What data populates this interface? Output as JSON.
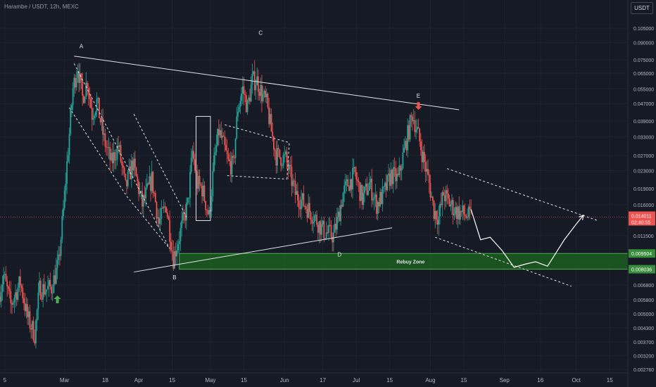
{
  "header": {
    "title": "Harambe / USDT, 12h, MEXC",
    "currency": "USDT"
  },
  "colors": {
    "background": "#161a25",
    "up": "#26a69a",
    "down": "#ef5350",
    "zone_fill": "#1b5e20",
    "zone_border": "#4caf50",
    "drawing": "#e0e3eb"
  },
  "chart_data": {
    "type": "candlestick",
    "scale": "log",
    "ylim": [
      0.00276,
      0.115
    ],
    "xlim": [
      "2024-02-03",
      "2024-10-22"
    ],
    "y_ticks": [
      "0.105000",
      "0.090000",
      "0.075000",
      "0.065000",
      "0.055000",
      "0.047000",
      "0.039000",
      "0.033000",
      "0.027000",
      "0.023000",
      "0.019000",
      "0.016000",
      "0.011500",
      "0.009500",
      "0.006800",
      "0.005800",
      "0.005000",
      "0.004300",
      "0.003700",
      "0.003200",
      "0.002760"
    ],
    "x_ticks": [
      {
        "label": "5",
        "date": "2024-02-05"
      },
      {
        "label": "Mar",
        "date": "2024-03-01"
      },
      {
        "label": "18",
        "date": "2024-03-18"
      },
      {
        "label": "Apr",
        "date": "2024-04-01"
      },
      {
        "label": "15",
        "date": "2024-04-15"
      },
      {
        "label": "May",
        "date": "2024-05-01"
      },
      {
        "label": "15",
        "date": "2024-05-15"
      },
      {
        "label": "Jun",
        "date": "2024-06-01"
      },
      {
        "label": "17",
        "date": "2024-06-17"
      },
      {
        "label": "Jul",
        "date": "2024-07-01"
      },
      {
        "label": "15",
        "date": "2024-07-15"
      },
      {
        "label": "Aug",
        "date": "2024-08-01"
      },
      {
        "label": "15",
        "date": "2024-08-15"
      },
      {
        "label": "Sep",
        "date": "2024-09-01"
      },
      {
        "label": "16",
        "date": "2024-09-16"
      },
      {
        "label": "Oct",
        "date": "2024-10-01"
      },
      {
        "label": "15",
        "date": "2024-10-15"
      }
    ],
    "price_path": [
      [
        "2024-02-03",
        0.006
      ],
      [
        "2024-02-05",
        0.0075
      ],
      [
        "2024-02-08",
        0.0055
      ],
      [
        "2024-02-12",
        0.007
      ],
      [
        "2024-02-15",
        0.0048
      ],
      [
        "2024-02-18",
        0.004
      ],
      [
        "2024-02-20",
        0.0065
      ],
      [
        "2024-02-23",
        0.0065
      ],
      [
        "2024-02-25",
        0.0066
      ],
      [
        "2024-02-28",
        0.0085
      ],
      [
        "2024-03-01",
        0.015
      ],
      [
        "2024-03-03",
        0.029
      ],
      [
        "2024-03-05",
        0.055
      ],
      [
        "2024-03-07",
        0.07
      ],
      [
        "2024-03-09",
        0.05
      ],
      [
        "2024-03-11",
        0.06
      ],
      [
        "2024-03-13",
        0.042
      ],
      [
        "2024-03-15",
        0.048
      ],
      [
        "2024-03-18",
        0.032
      ],
      [
        "2024-03-21",
        0.025
      ],
      [
        "2024-03-24",
        0.03
      ],
      [
        "2024-03-27",
        0.019
      ],
      [
        "2024-03-30",
        0.025
      ],
      [
        "2024-04-03",
        0.016
      ],
      [
        "2024-04-07",
        0.021
      ],
      [
        "2024-04-10",
        0.013
      ],
      [
        "2024-04-13",
        0.016
      ],
      [
        "2024-04-16",
        0.009
      ],
      [
        "2024-04-19",
        0.012
      ],
      [
        "2024-04-22",
        0.016
      ],
      [
        "2024-04-24",
        0.028
      ],
      [
        "2024-04-26",
        0.02
      ],
      [
        "2024-04-28",
        0.019
      ],
      [
        "2024-05-01",
        0.014
      ],
      [
        "2024-05-03",
        0.025
      ],
      [
        "2024-05-05",
        0.035
      ],
      [
        "2024-05-07",
        0.03
      ],
      [
        "2024-05-09",
        0.025
      ],
      [
        "2024-05-11",
        0.024
      ],
      [
        "2024-05-13",
        0.045
      ],
      [
        "2024-05-15",
        0.055
      ],
      [
        "2024-05-17",
        0.045
      ],
      [
        "2024-05-19",
        0.06
      ],
      [
        "2024-05-21",
        0.06
      ],
      [
        "2024-05-23",
        0.052
      ],
      [
        "2024-05-25",
        0.047
      ],
      [
        "2024-05-27",
        0.035
      ],
      [
        "2024-05-29",
        0.027
      ],
      [
        "2024-06-02",
        0.026
      ],
      [
        "2024-06-06",
        0.018
      ],
      [
        "2024-06-10",
        0.016
      ],
      [
        "2024-06-14",
        0.014
      ],
      [
        "2024-06-18",
        0.012
      ],
      [
        "2024-06-22",
        0.0115
      ],
      [
        "2024-06-24",
        0.014
      ],
      [
        "2024-06-26",
        0.018
      ],
      [
        "2024-06-28",
        0.02
      ],
      [
        "2024-07-01",
        0.022
      ],
      [
        "2024-07-04",
        0.017
      ],
      [
        "2024-07-07",
        0.02
      ],
      [
        "2024-07-10",
        0.016
      ],
      [
        "2024-07-13",
        0.018
      ],
      [
        "2024-07-16",
        0.022
      ],
      [
        "2024-07-19",
        0.021
      ],
      [
        "2024-07-22",
        0.03
      ],
      [
        "2024-07-25",
        0.042
      ],
      [
        "2024-07-27",
        0.035
      ],
      [
        "2024-07-30",
        0.025
      ],
      [
        "2024-08-01",
        0.02
      ],
      [
        "2024-08-03",
        0.015
      ],
      [
        "2024-08-05",
        0.014
      ],
      [
        "2024-08-07",
        0.018
      ],
      [
        "2024-08-09",
        0.0165
      ],
      [
        "2024-08-12",
        0.015
      ],
      [
        "2024-08-15",
        0.0145
      ],
      [
        "2024-08-18",
        0.01401
      ]
    ],
    "last_price": "0.014011",
    "countdown": "02:40:55",
    "zone": {
      "label": "Rebuy Zone",
      "upper": 0.009504,
      "lower": 0.008036,
      "upper_label": "0.009504",
      "lower_label": "0.008036",
      "start": "2024-04-18",
      "end": "2024-10-22"
    },
    "annotations": [
      {
        "label": "A",
        "date": "2024-03-08",
        "price": 0.085
      },
      {
        "label": "B",
        "date": "2024-04-16",
        "price": 0.0072
      },
      {
        "label": "C",
        "date": "2024-05-22",
        "price": 0.098
      },
      {
        "label": "D",
        "date": "2024-06-24",
        "price": 0.0092
      },
      {
        "label": "E",
        "date": "2024-07-27",
        "price": 0.05
      }
    ],
    "markers": [
      {
        "type": "up-arrow",
        "color": "#4caf50",
        "date": "2024-02-27",
        "price": 0.0058
      },
      {
        "type": "down-arrow",
        "color": "#ef5350",
        "date": "2024-07-27",
        "price": 0.046
      }
    ],
    "trendlines": [
      {
        "style": "solid",
        "points": [
          [
            "2024-03-05",
            0.078
          ],
          [
            "2024-08-13",
            0.044
          ]
        ]
      },
      {
        "style": "solid",
        "points": [
          [
            "2024-03-30",
            0.0078
          ],
          [
            "2024-07-16",
            0.0125
          ]
        ]
      },
      {
        "style": "dashed",
        "points": [
          [
            "2024-03-05",
            0.072
          ],
          [
            "2024-04-14",
            0.01
          ]
        ]
      },
      {
        "style": "dashed",
        "points": [
          [
            "2024-03-03",
            0.045
          ],
          [
            "2024-03-27",
            0.0175
          ]
        ]
      },
      {
        "style": "dashed",
        "points": [
          [
            "2024-03-27",
            0.0175
          ],
          [
            "2024-04-14",
            0.01
          ]
        ]
      },
      {
        "style": "dashed",
        "points": [
          [
            "2024-03-30",
            0.042
          ],
          [
            "2024-04-21",
            0.014
          ]
        ]
      },
      {
        "style": "dashed",
        "points": [
          [
            "2024-05-07",
            0.0375
          ],
          [
            "2024-06-03",
            0.031
          ]
        ]
      },
      {
        "style": "dashed",
        "points": [
          [
            "2024-05-08",
            0.0218
          ],
          [
            "2024-06-02",
            0.021
          ]
        ]
      },
      {
        "style": "dashed",
        "points": [
          [
            "2024-06-02",
            0.021
          ],
          [
            "2024-06-03",
            0.031
          ]
        ]
      },
      {
        "style": "dashed",
        "points": [
          [
            "2024-08-08",
            0.0235
          ],
          [
            "2024-10-10",
            0.0135
          ]
        ]
      },
      {
        "style": "dashed",
        "points": [
          [
            "2024-08-03",
            0.0113
          ],
          [
            "2024-09-29",
            0.0067
          ]
        ]
      }
    ],
    "rectangles": [
      {
        "start": "2024-04-25",
        "end": "2024-05-01",
        "top": 0.041,
        "bottom": 0.0135
      }
    ],
    "projection": [
      [
        "2024-08-18",
        0.0152
      ],
      [
        "2024-08-22",
        0.011
      ],
      [
        "2024-08-26",
        0.0113
      ],
      [
        "2024-08-31",
        0.0098
      ],
      [
        "2024-09-05",
        0.0082
      ],
      [
        "2024-09-10",
        0.0085
      ],
      [
        "2024-09-14",
        0.0087
      ],
      [
        "2024-09-19",
        0.0083
      ],
      [
        "2024-09-26",
        0.011
      ],
      [
        "2024-10-01",
        0.013
      ],
      [
        "2024-10-04",
        0.0143
      ]
    ]
  }
}
